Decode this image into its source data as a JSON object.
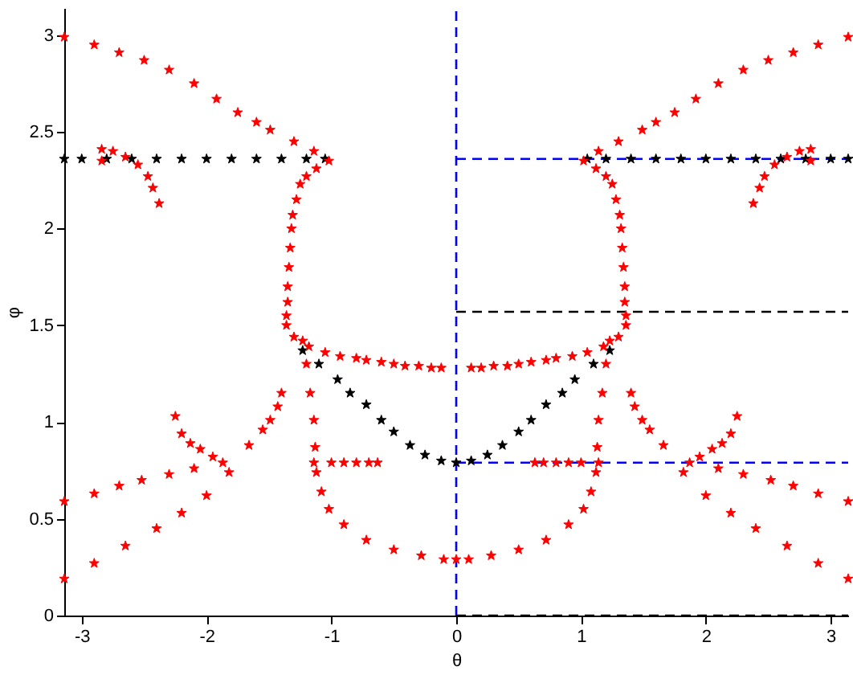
{
  "chart_data": {
    "type": "scatter",
    "xlabel": "θ",
    "ylabel": "φ",
    "xlim": [
      -3.14,
      3.14
    ],
    "ylim": [
      0,
      3.14
    ],
    "xticks": [
      -3,
      -2,
      -1,
      0,
      1,
      2,
      3
    ],
    "yticks": [
      0,
      0.5,
      1,
      1.5,
      2,
      2.5,
      3
    ],
    "grid": false,
    "ref_lines": [
      {
        "axis": "x",
        "value": 0,
        "color": "#0000ff",
        "line_style": "dashed"
      }
    ],
    "series": [
      {
        "type": "line",
        "color": "#0000ff",
        "line_style": "dashed",
        "x": [
          0,
          3.14
        ],
        "values": [
          2.36,
          2.36
        ]
      },
      {
        "type": "line",
        "color": "#000000",
        "line_style": "dashed",
        "x": [
          0,
          3.14
        ],
        "values": [
          1.57,
          1.57
        ]
      },
      {
        "type": "line",
        "color": "#0000ff",
        "line_style": "dashed",
        "x": [
          0,
          3.14
        ],
        "values": [
          0.79,
          0.79
        ]
      },
      {
        "type": "line",
        "color": "#000000",
        "line_style": "dashed",
        "x": [
          0,
          3.14
        ],
        "values": [
          0,
          0
        ]
      },
      {
        "color": "#000000",
        "marker": "star",
        "x": [
          -3.14,
          -3.0,
          -2.8,
          -2.6,
          -2.4,
          -2.2,
          -2.0,
          -1.8,
          -1.6,
          -1.4,
          -1.2,
          -1.05,
          -1.23,
          -1.1,
          -0.95,
          -0.85,
          -0.72,
          -0.6,
          -0.5,
          -0.37,
          -0.25,
          -0.12,
          0,
          0.12,
          0.25,
          0.37,
          0.5,
          0.6,
          0.72,
          0.85,
          0.95,
          1.1,
          1.23,
          1.05,
          1.2,
          1.4,
          1.6,
          1.8,
          2.0,
          2.2,
          2.4,
          2.6,
          2.8,
          3.0,
          3.14
        ],
        "values": [
          2.36,
          2.36,
          2.36,
          2.36,
          2.36,
          2.36,
          2.36,
          2.36,
          2.36,
          2.36,
          2.36,
          2.36,
          1.37,
          1.3,
          1.22,
          1.15,
          1.09,
          1.01,
          0.95,
          0.88,
          0.83,
          0.8,
          0.79,
          0.8,
          0.83,
          0.88,
          0.95,
          1.01,
          1.09,
          1.15,
          1.22,
          1.3,
          1.37,
          2.36,
          2.36,
          2.36,
          2.36,
          2.36,
          2.36,
          2.36,
          2.36,
          2.36,
          2.36,
          2.36,
          2.36
        ]
      },
      {
        "color": "#ff0000",
        "marker": "star",
        "x": [
          -3.14,
          -2.9,
          -2.7,
          -2.5,
          -2.3,
          -2.1,
          -1.92,
          -1.75,
          -1.6,
          -1.49,
          -1.3,
          -1.14,
          -1.02,
          -1.12,
          -1.2,
          -1.25,
          -1.28,
          -1.31,
          -1.32,
          -1.33,
          -1.34,
          -1.35,
          -1.35,
          -1.36,
          -2.84,
          -2.84,
          -2.75,
          -2.65,
          -2.55,
          -2.47,
          -2.43,
          -2.38,
          -1.36,
          -1.3,
          -1.18,
          -1.05,
          -0.93,
          -0.8,
          -0.72,
          -0.6,
          -0.5,
          -0.41,
          -0.3,
          -0.2,
          -0.12,
          -1.23,
          -1.2,
          -1.17,
          -1.14,
          -1.13,
          -1.12,
          -1.08,
          -1.02,
          -0.9,
          -0.72,
          -0.5,
          -0.28,
          -0.1,
          0,
          -1.14,
          -1.0,
          -0.9,
          -0.8,
          -0.7,
          -0.63,
          -3.14,
          -2.9,
          -2.65,
          -2.4,
          -2.2,
          -2.0,
          -1.82,
          -1.66,
          -1.55,
          -1.49,
          -1.43,
          -1.4,
          -3.14,
          -2.9,
          -2.7,
          -2.52,
          -2.3,
          -2.1,
          -1.87,
          -1.95,
          -2.05,
          -2.13,
          -2.2,
          -2.25
        ],
        "values": [
          2.99,
          2.95,
          2.91,
          2.87,
          2.82,
          2.75,
          2.67,
          2.6,
          2.55,
          2.51,
          2.45,
          2.4,
          2.35,
          2.31,
          2.27,
          2.23,
          2.15,
          2.07,
          2.0,
          1.9,
          1.8,
          1.7,
          1.62,
          1.55,
          2.35,
          2.41,
          2.4,
          2.37,
          2.33,
          2.27,
          2.21,
          2.13,
          1.5,
          1.44,
          1.39,
          1.36,
          1.34,
          1.33,
          1.32,
          1.31,
          1.3,
          1.29,
          1.29,
          1.28,
          1.28,
          1.42,
          1.3,
          1.15,
          1.01,
          0.87,
          0.74,
          0.64,
          0.55,
          0.47,
          0.39,
          0.34,
          0.31,
          0.29,
          0.29,
          0.79,
          0.79,
          0.79,
          0.79,
          0.79,
          0.79,
          0.19,
          0.27,
          0.36,
          0.45,
          0.53,
          0.62,
          0.74,
          0.88,
          0.96,
          1.01,
          1.08,
          1.15,
          0.59,
          0.63,
          0.67,
          0.7,
          0.73,
          0.76,
          0.79,
          0.82,
          0.86,
          0.89,
          0.94,
          1.03
        ]
      },
      {
        "color": "#ff0000",
        "marker": "star",
        "x": [
          3.14,
          2.9,
          2.7,
          2.5,
          2.3,
          2.1,
          1.92,
          1.75,
          1.6,
          1.49,
          1.3,
          1.14,
          1.02,
          1.12,
          1.2,
          1.25,
          1.28,
          1.31,
          1.32,
          1.33,
          1.34,
          1.35,
          1.35,
          1.36,
          2.84,
          2.84,
          2.75,
          2.65,
          2.55,
          2.47,
          2.43,
          2.38,
          1.36,
          1.3,
          1.18,
          1.05,
          0.93,
          0.8,
          0.72,
          0.6,
          0.5,
          0.41,
          0.3,
          0.2,
          0.12,
          1.23,
          1.2,
          1.17,
          1.14,
          1.13,
          1.12,
          1.08,
          1.02,
          0.9,
          0.72,
          0.5,
          0.28,
          0.1,
          1.14,
          1.0,
          0.9,
          0.8,
          0.7,
          0.63,
          3.14,
          2.9,
          2.65,
          2.4,
          2.2,
          2.0,
          1.82,
          1.66,
          1.55,
          1.49,
          1.43,
          1.4,
          3.14,
          2.9,
          2.7,
          2.52,
          2.3,
          2.1,
          1.87,
          1.95,
          2.05,
          2.13,
          2.2,
          2.25
        ],
        "values": [
          2.99,
          2.95,
          2.91,
          2.87,
          2.82,
          2.75,
          2.67,
          2.6,
          2.55,
          2.51,
          2.45,
          2.4,
          2.35,
          2.31,
          2.27,
          2.23,
          2.15,
          2.07,
          2.0,
          1.9,
          1.8,
          1.7,
          1.62,
          1.55,
          2.35,
          2.41,
          2.4,
          2.37,
          2.33,
          2.27,
          2.21,
          2.13,
          1.5,
          1.44,
          1.39,
          1.36,
          1.34,
          1.33,
          1.32,
          1.31,
          1.3,
          1.29,
          1.29,
          1.28,
          1.28,
          1.42,
          1.3,
          1.15,
          1.01,
          0.87,
          0.74,
          0.64,
          0.55,
          0.47,
          0.39,
          0.34,
          0.31,
          0.29,
          0.79,
          0.79,
          0.79,
          0.79,
          0.79,
          0.79,
          0.19,
          0.27,
          0.36,
          0.45,
          0.53,
          0.62,
          0.74,
          0.88,
          0.96,
          1.01,
          1.08,
          1.15,
          0.59,
          0.63,
          0.67,
          0.7,
          0.73,
          0.76,
          0.79,
          0.82,
          0.86,
          0.89,
          0.94,
          1.03
        ]
      }
    ]
  }
}
